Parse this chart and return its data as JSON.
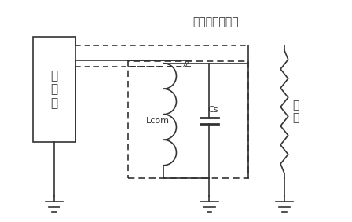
{
  "title": "电流源输出通道",
  "bg_color": "#ffffff",
  "line_color": "#333333",
  "text_current_source": "电\n流\n源",
  "text_load": "负\n载",
  "label_lcom": "Lcom",
  "label_cs": "Cs",
  "figsize": [
    4.48,
    2.83
  ],
  "dpi": 100
}
